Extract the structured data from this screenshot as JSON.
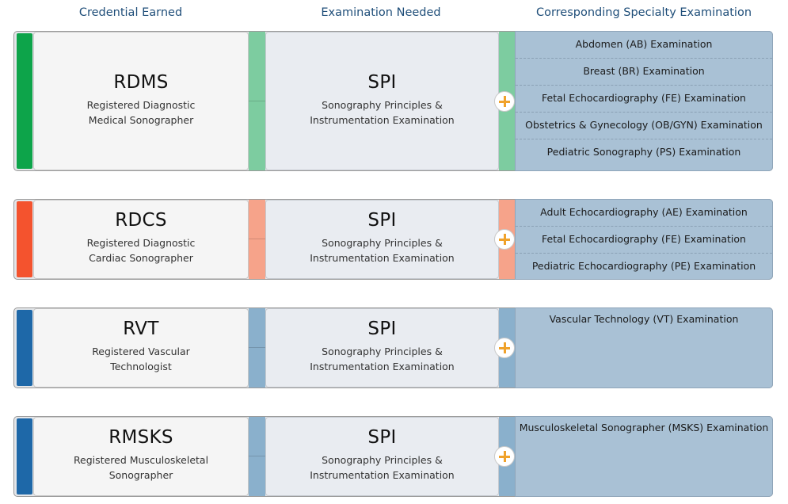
{
  "headers": {
    "credential": "Credential Earned",
    "exam": "Examination Needed",
    "specialty": "Corresponding Specialty Examination"
  },
  "rows": [
    {
      "abbr": "RDMS",
      "name_line1": "Registered Diagnostic",
      "name_line2": "Medical Sonographer",
      "exam_abbr": "SPI",
      "exam_line1": "Sonography Principles &",
      "exam_line2": "Instrumentation Examination",
      "accent_color": "#0da44a",
      "connector_color": "#7dcca0",
      "specialties": [
        "Abdomen (AB) Examination",
        "Breast (BR) Examination",
        "Fetal Echocardiography (FE) Examination",
        "Obstetrics & Gynecology (OB/GYN) Examination",
        "Pediatric Sonography (PS) Examination"
      ]
    },
    {
      "abbr": "RDCS",
      "name_line1": "Registered Diagnostic",
      "name_line2": "Cardiac Sonographer",
      "exam_abbr": "SPI",
      "exam_line1": "Sonography Principles &",
      "exam_line2": "Instrumentation Examination",
      "accent_color": "#f4532e",
      "connector_color": "#f6a38a",
      "specialties": [
        "Adult Echocardiography (AE) Examination",
        "Fetal Echocardiography (FE) Examination",
        "Pediatric Echocardiography (PE) Examination"
      ]
    },
    {
      "abbr": "RVT",
      "name_line1": "Registered Vascular",
      "name_line2": "Technologist",
      "exam_abbr": "SPI",
      "exam_line1": "Sonography Principles &",
      "exam_line2": "Instrumentation Examination",
      "accent_color": "#1e68a8",
      "connector_color": "#8ab0cc",
      "specialties": [
        "Vascular Technology (VT) Examination"
      ]
    },
    {
      "abbr": "RMSKS",
      "name_line1": "Registered Musculoskeletal",
      "name_line2": "Sonographer",
      "exam_abbr": "SPI",
      "exam_line1": "Sonography Principles &",
      "exam_line2": "Instrumentation Examination",
      "accent_color": "#1e68a8",
      "connector_color": "#8ab0cc",
      "specialties": [
        "Musculoskeletal Sonographer (MSKS) Examination"
      ]
    }
  ]
}
